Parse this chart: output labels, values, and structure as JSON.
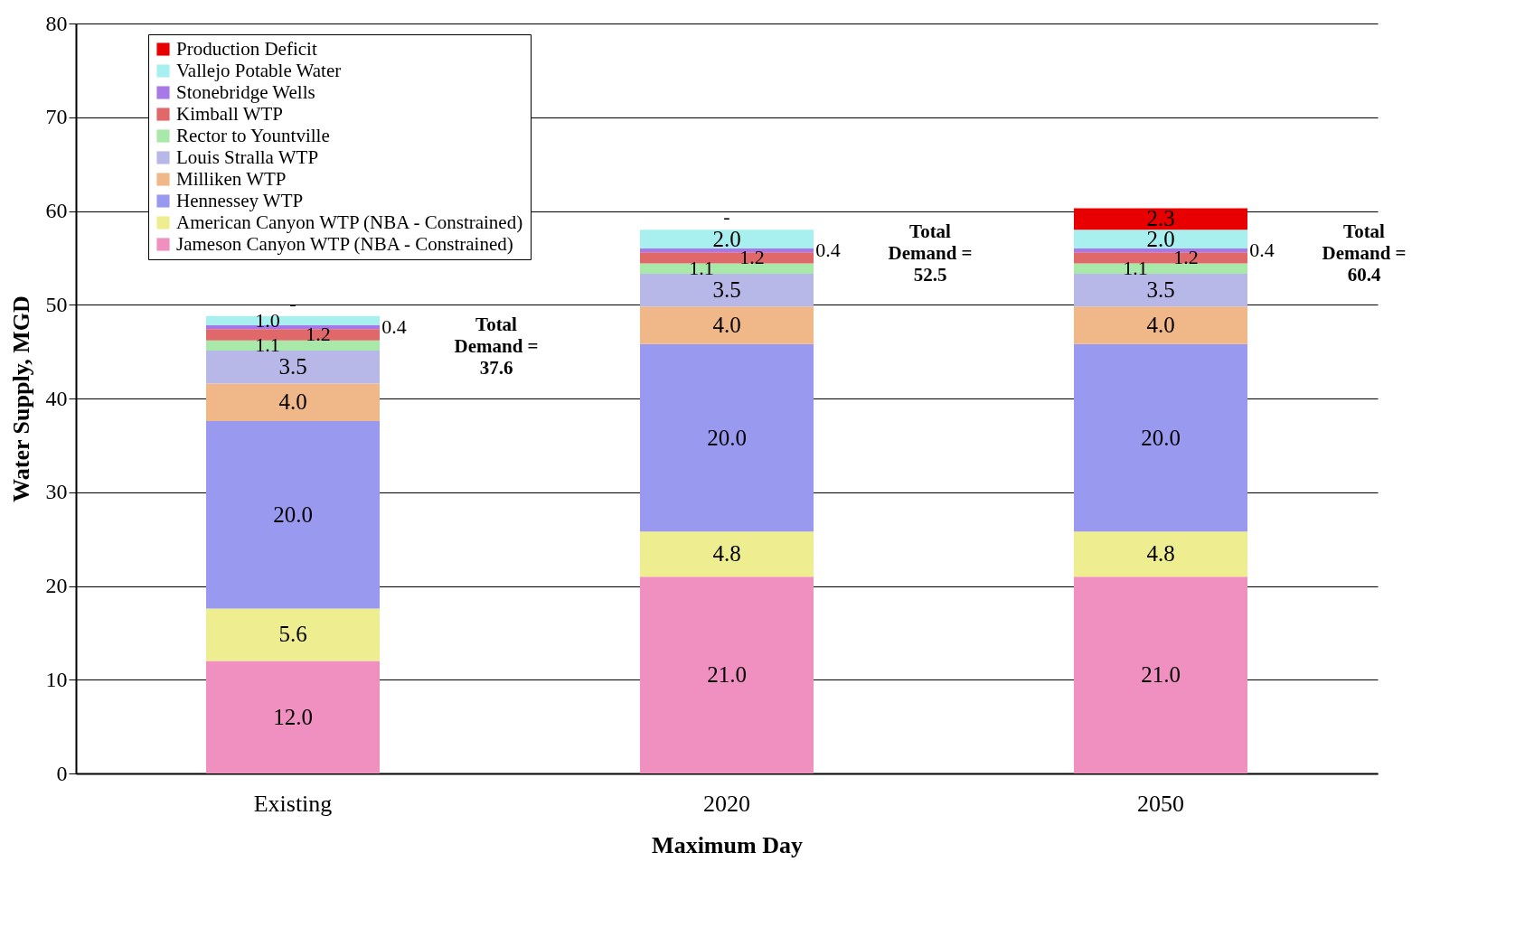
{
  "chart_data": {
    "type": "bar",
    "stacked": true,
    "xlabel": "Maximum Day",
    "ylabel": "Water Supply, MGD",
    "categories": [
      "Existing",
      "2020",
      "2050"
    ],
    "series": [
      {
        "name": "Jameson Canyon WTP (NBA - Constrained)",
        "color": "#f090c0",
        "values": [
          12,
          21,
          21
        ],
        "value_labels": [
          "12.0",
          "21.0",
          "21.0"
        ]
      },
      {
        "name": "American Canyon WTP (NBA - Constrained)",
        "color": "#eeee90",
        "values": [
          5.6,
          4.8,
          4.8
        ],
        "value_labels": [
          "5.6",
          "4.8",
          "4.8"
        ]
      },
      {
        "name": "Hennessey WTP",
        "color": "#9999f0",
        "values": [
          20,
          20,
          20
        ],
        "value_labels": [
          "20.0",
          "20.0",
          "20.0"
        ]
      },
      {
        "name": "Milliken WTP",
        "color": "#f0b888",
        "values": [
          4,
          4,
          4
        ],
        "value_labels": [
          "4.0",
          "4.0",
          "4.0"
        ]
      },
      {
        "name": "Louis Stralla WTP",
        "color": "#b8b8e8",
        "values": [
          3.5,
          3.5,
          3.5
        ],
        "value_labels": [
          "3.5",
          "3.5",
          "3.5"
        ]
      },
      {
        "name": "Rector to Yountville",
        "color": "#a8e8a8",
        "values": [
          1.1,
          1.1,
          1.1
        ],
        "value_labels": [
          "1.1",
          "1.1",
          "1.1"
        ]
      },
      {
        "name": "Kimball WTP",
        "color": "#e06868",
        "values": [
          1.2,
          1.2,
          1.2
        ],
        "value_labels": [
          "1.2",
          "1.2",
          "1.2"
        ]
      },
      {
        "name": "Stonebridge Wells",
        "color": "#a878e8",
        "values": [
          0.4,
          0.4,
          0.4
        ],
        "value_labels": [
          "0.4",
          "0.4",
          "0.4"
        ]
      },
      {
        "name": "Vallejo Potable Water",
        "color": "#a8f0f0",
        "values": [
          1,
          2,
          2
        ],
        "value_labels": [
          "1.0",
          "2.0",
          "2.0"
        ]
      },
      {
        "name": "Production Deficit",
        "color": "#e80000",
        "values": [
          0,
          0,
          2.3
        ],
        "value_labels": [
          "-",
          "-",
          "2.3"
        ]
      }
    ],
    "ylim": [
      0,
      80
    ],
    "yticks": [
      0,
      10,
      20,
      30,
      40,
      50,
      60,
      70,
      80
    ],
    "grid": "y",
    "legend": "top left",
    "annotations": [
      "Total Demand = 37.6",
      "Total Demand = 52.5",
      "Total Demand = 60.4"
    ]
  }
}
